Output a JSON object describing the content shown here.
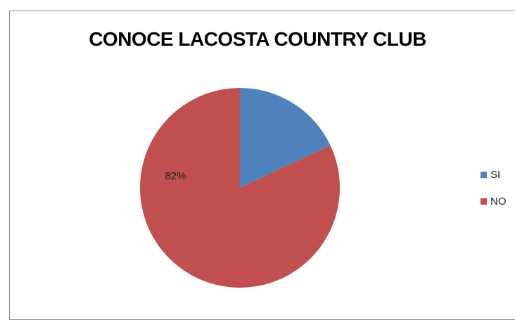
{
  "chart_data": {
    "type": "pie",
    "title": "CONOCE LACOSTA COUNTRY CLUB",
    "categories": [
      "SI",
      "NO"
    ],
    "values": [
      18,
      82
    ],
    "colors": [
      "#4f81bd",
      "#c0504d"
    ],
    "data_labels": [
      "",
      "82%"
    ],
    "legend_position": "right"
  }
}
